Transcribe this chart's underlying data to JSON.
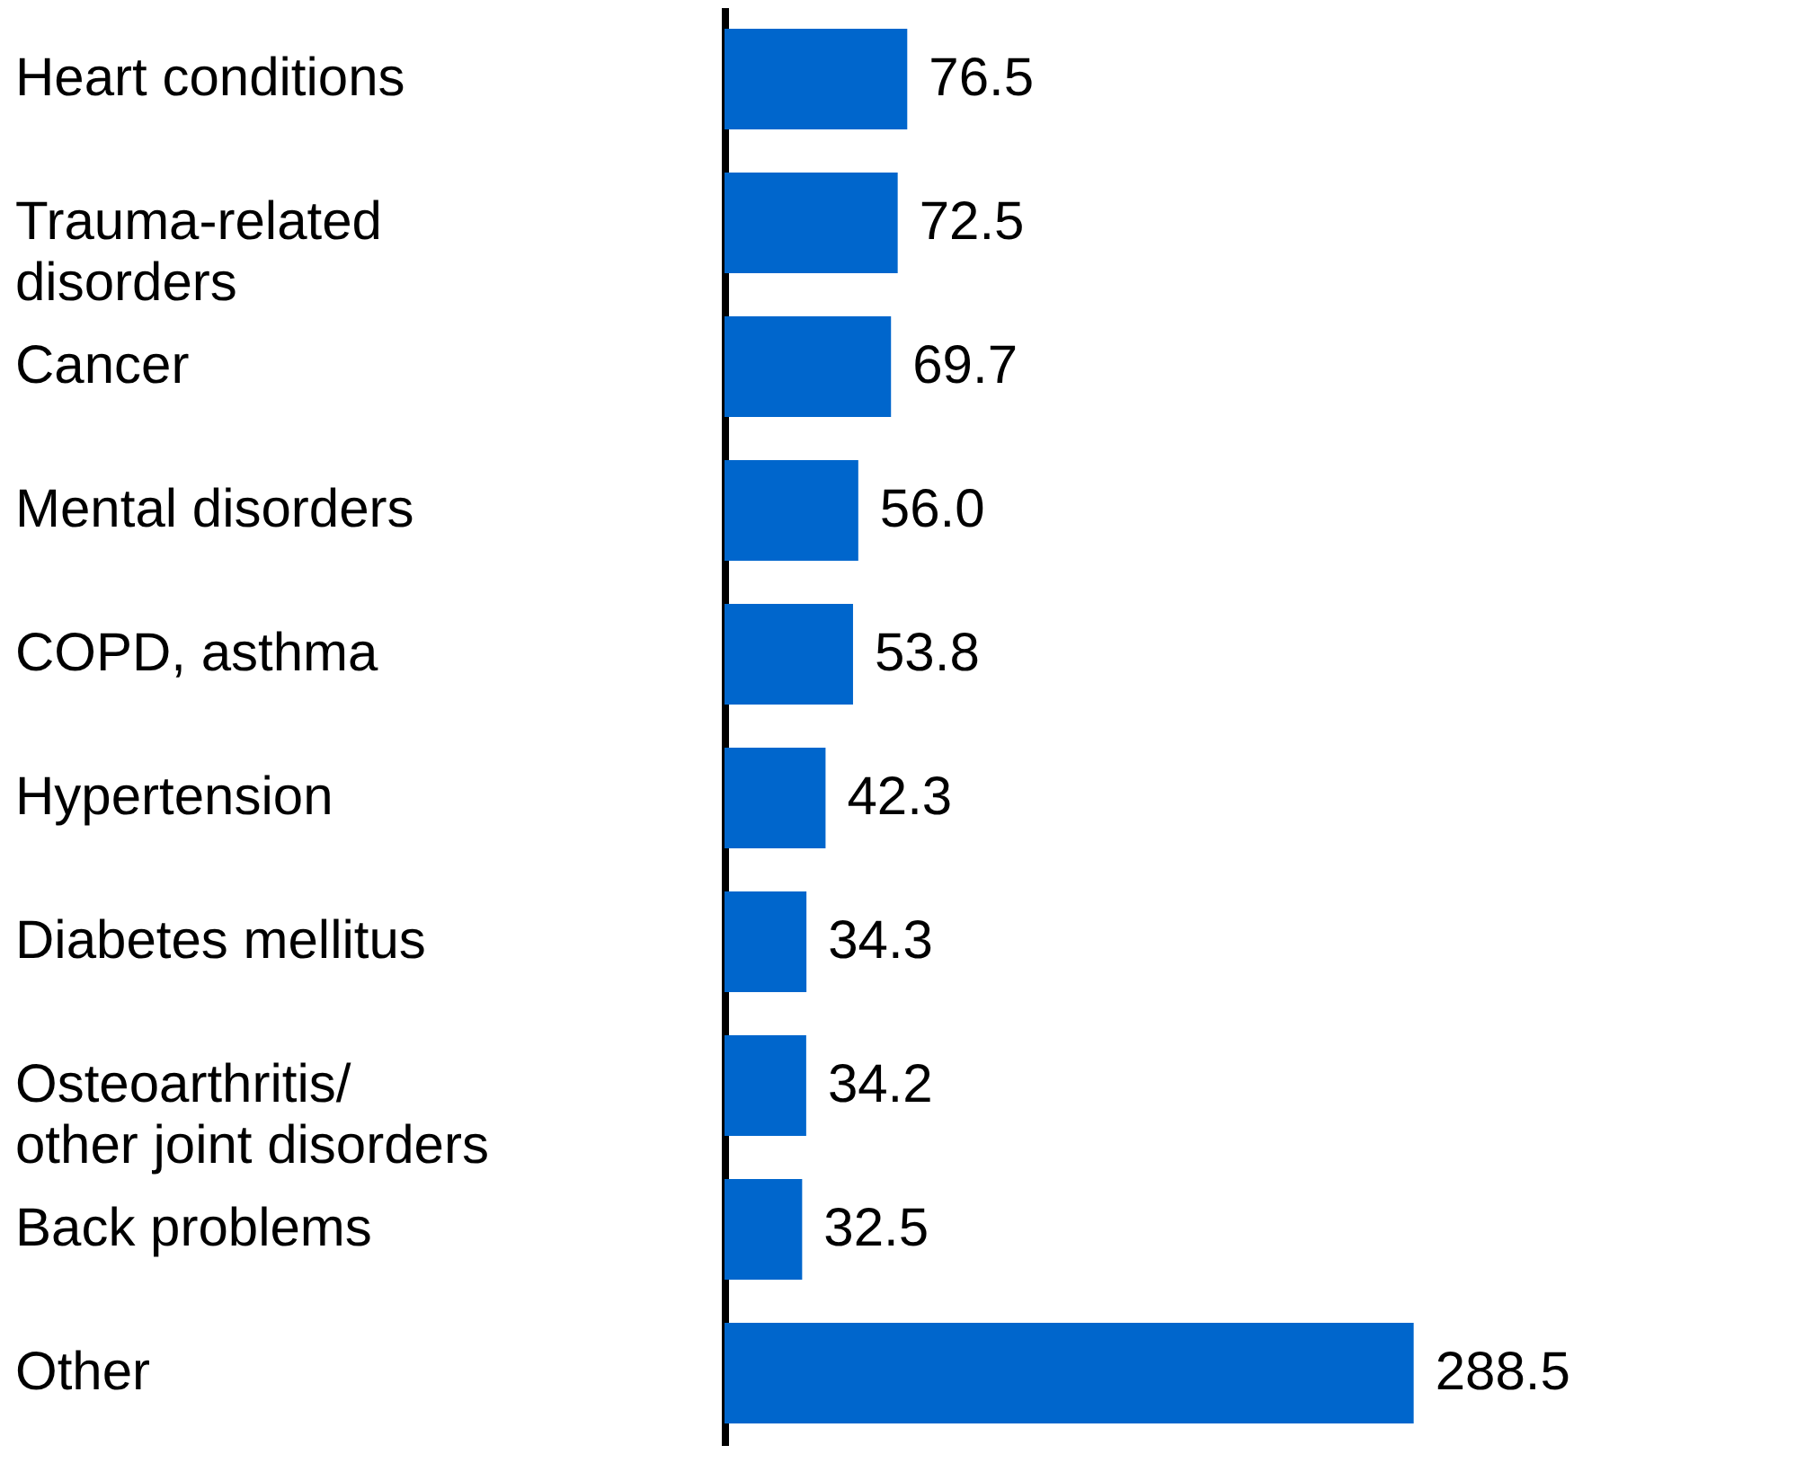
{
  "chart_data": {
    "type": "bar",
    "orientation": "horizontal",
    "categories": [
      "Heart conditions",
      "Trauma-related\ndisorders",
      "Cancer",
      "Mental disorders",
      "COPD, asthma",
      "Hypertension",
      "Diabetes mellitus",
      "Osteoarthritis/\nother joint disorders",
      "Back problems",
      "Other"
    ],
    "values": [
      76.5,
      72.5,
      69.7,
      56.0,
      53.8,
      42.3,
      34.3,
      34.2,
      32.5,
      288.5
    ],
    "value_labels": [
      "76.5",
      "72.5",
      "69.7",
      "56.0",
      "53.8",
      "42.3",
      "34.3",
      "34.2",
      "32.5",
      "288.5"
    ],
    "color": "#0066cc"
  }
}
